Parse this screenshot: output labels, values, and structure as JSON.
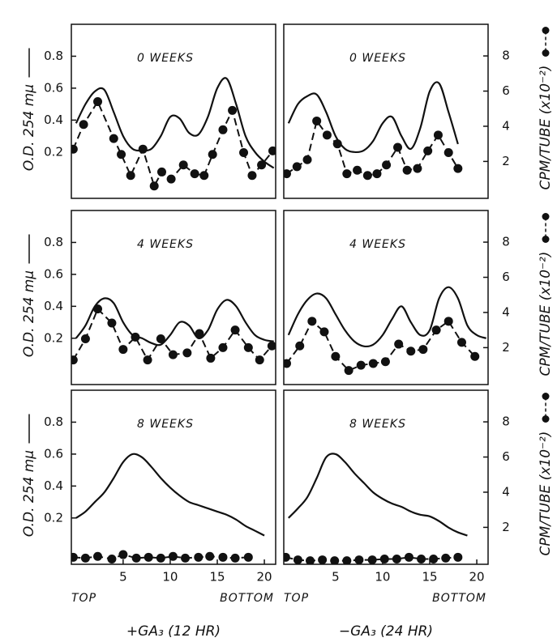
{
  "column_labels": [
    "+GA₃ (12 HR)",
    "−GA₃ (24 HR)"
  ],
  "chart_data": [
    {
      "type": "line",
      "title": "0 WEEKS",
      "ylabel": "O.D. 254 mμ",
      "xlim": [
        -0.5,
        21.2
      ],
      "ylim": [
        -0.09,
        1.0
      ],
      "y2lim": [
        -0.1,
        9.8
      ],
      "yticks": [
        0.2,
        0.4,
        0.6,
        0.8
      ],
      "series": [
        {
          "style": "solid",
          "color": "#111111",
          "x": [
            0,
            1,
            2,
            3,
            4,
            5,
            6,
            7,
            8,
            9,
            10,
            11,
            12,
            13,
            14,
            15,
            16,
            17,
            18,
            19,
            20,
            21
          ],
          "values": [
            0.38,
            0.5,
            0.58,
            0.59,
            0.45,
            0.3,
            0.22,
            0.21,
            0.22,
            0.3,
            0.42,
            0.41,
            0.32,
            0.31,
            0.42,
            0.6,
            0.66,
            0.5,
            0.3,
            0.2,
            0.14,
            0.1
          ]
        },
        {
          "style": "dashed-dots",
          "axis": "y2",
          "color": "#111111",
          "x": [
            -0.3,
            0.8,
            2.3,
            4.0,
            4.8,
            5.8,
            7.1,
            8.3,
            9.1,
            10.1,
            11.4,
            12.6,
            13.6,
            14.5,
            15.6,
            16.6,
            17.8,
            18.7,
            19.7,
            20.9
          ],
          "values": [
            2.7,
            4.1,
            5.4,
            3.3,
            2.4,
            1.2,
            2.7,
            0.6,
            1.4,
            1.0,
            1.8,
            1.3,
            1.2,
            2.4,
            3.8,
            4.9,
            2.5,
            1.2,
            1.8,
            2.6
          ]
        }
      ]
    },
    {
      "type": "line",
      "title": "0 WEEKS",
      "y2label": "CPM/TUBE (x10⁻²)",
      "xlim": [
        -0.5,
        21.2
      ],
      "ylim": [
        -0.09,
        1.0
      ],
      "y2lim": [
        -0.1,
        9.8
      ],
      "y2ticks": [
        2,
        4,
        6,
        8
      ],
      "series": [
        {
          "style": "solid",
          "color": "#111111",
          "x": [
            0,
            1,
            2,
            3,
            4,
            5,
            6,
            7,
            8,
            9,
            10,
            11,
            12,
            13,
            14,
            15,
            16,
            17,
            18
          ],
          "values": [
            0.38,
            0.5,
            0.55,
            0.56,
            0.45,
            0.3,
            0.22,
            0.2,
            0.21,
            0.27,
            0.38,
            0.42,
            0.3,
            0.22,
            0.35,
            0.58,
            0.63,
            0.45,
            0.25
          ]
        },
        {
          "style": "dashed-dots",
          "axis": "y2",
          "color": "#111111",
          "x": [
            -0.2,
            0.9,
            2.0,
            3.0,
            4.1,
            5.2,
            6.2,
            7.3,
            8.4,
            9.4,
            10.4,
            11.6,
            12.6,
            13.7,
            14.8,
            15.9,
            17.0,
            18.0
          ],
          "values": [
            1.3,
            1.7,
            2.1,
            4.3,
            3.5,
            3.0,
            1.3,
            1.5,
            1.2,
            1.3,
            1.8,
            2.8,
            1.5,
            1.6,
            2.6,
            3.5,
            2.5,
            1.6
          ]
        }
      ]
    },
    {
      "type": "line",
      "title": "4 WEEKS",
      "ylabel": "O.D. 254 mμ",
      "xlim": [
        -0.5,
        21.2
      ],
      "ylim": [
        -0.09,
        1.0
      ],
      "y2lim": [
        -0.1,
        9.8
      ],
      "yticks": [
        0.2,
        0.4,
        0.6,
        0.8
      ],
      "series": [
        {
          "style": "solid",
          "color": "#111111",
          "x": [
            0,
            1,
            2,
            3,
            4,
            5,
            6,
            7,
            8,
            9,
            10,
            11,
            12,
            13,
            14,
            15,
            16,
            17,
            18,
            19,
            20,
            21
          ],
          "values": [
            0.2,
            0.28,
            0.4,
            0.45,
            0.42,
            0.3,
            0.22,
            0.2,
            0.17,
            0.16,
            0.22,
            0.3,
            0.28,
            0.2,
            0.25,
            0.38,
            0.44,
            0.4,
            0.3,
            0.22,
            0.19,
            0.18
          ]
        },
        {
          "style": "dashed-dots",
          "axis": "y2",
          "color": "#111111",
          "x": [
            -0.3,
            1.0,
            2.3,
            3.8,
            5.0,
            6.3,
            7.6,
            9.0,
            10.3,
            11.8,
            13.1,
            14.3,
            15.6,
            16.9,
            18.3,
            19.5,
            20.8
          ],
          "values": [
            1.3,
            2.5,
            4.2,
            3.4,
            1.9,
            2.6,
            1.3,
            2.5,
            1.6,
            1.7,
            2.8,
            1.4,
            2.0,
            3.0,
            2.0,
            1.3,
            2.1
          ]
        }
      ]
    },
    {
      "type": "line",
      "title": "4 WEEKS",
      "y2label": "CPM/TUBE (x10⁻²)",
      "xlim": [
        -0.5,
        21.2
      ],
      "ylim": [
        -0.09,
        1.0
      ],
      "y2lim": [
        -0.1,
        9.8
      ],
      "y2ticks": [
        2,
        4,
        6,
        8
      ],
      "series": [
        {
          "style": "solid",
          "color": "#111111",
          "x": [
            0,
            1,
            2,
            3,
            4,
            5,
            6,
            7,
            8,
            9,
            10,
            11,
            12,
            13,
            14,
            15,
            16,
            17,
            18,
            19,
            20,
            21
          ],
          "values": [
            0.22,
            0.35,
            0.44,
            0.48,
            0.45,
            0.35,
            0.25,
            0.18,
            0.15,
            0.16,
            0.22,
            0.32,
            0.4,
            0.3,
            0.22,
            0.25,
            0.45,
            0.52,
            0.45,
            0.28,
            0.22,
            0.2
          ]
        },
        {
          "style": "dashed-dots",
          "axis": "y2",
          "color": "#111111",
          "x": [
            -0.2,
            1.2,
            2.5,
            3.8,
            5.0,
            6.4,
            7.7,
            9.0,
            10.3,
            11.7,
            13.0,
            14.3,
            15.7,
            17.0,
            18.4,
            19.8
          ],
          "values": [
            1.1,
            2.1,
            3.5,
            2.9,
            1.5,
            0.7,
            1.0,
            1.1,
            1.2,
            2.2,
            1.8,
            1.9,
            3.0,
            3.5,
            2.3,
            1.5
          ]
        }
      ]
    },
    {
      "type": "line",
      "title": "8 WEEKS",
      "ylabel": "O.D. 254 mμ",
      "xlim": [
        -0.5,
        21.2
      ],
      "ylim": [
        -0.09,
        1.0
      ],
      "y2lim": [
        -0.1,
        9.8
      ],
      "yticks": [
        0.2,
        0.4,
        0.6,
        0.8
      ],
      "xticks": [
        5,
        10,
        15,
        20
      ],
      "x_start_label": "TOP",
      "x_end_label": "BOTTOM",
      "series": [
        {
          "style": "solid",
          "color": "#111111",
          "x": [
            0,
            1,
            2,
            3,
            4,
            5,
            6,
            7,
            8,
            9,
            10,
            11,
            12,
            13,
            14,
            15,
            16,
            17,
            18,
            19,
            20
          ],
          "values": [
            0.2,
            0.24,
            0.3,
            0.36,
            0.45,
            0.55,
            0.6,
            0.58,
            0.52,
            0.45,
            0.39,
            0.34,
            0.3,
            0.28,
            0.26,
            0.24,
            0.22,
            0.19,
            0.15,
            0.12,
            0.09
          ]
        },
        {
          "style": "dashed-dots",
          "axis": "y2",
          "color": "#111111",
          "x": [
            -0.3,
            1.0,
            2.3,
            3.8,
            5.0,
            6.4,
            7.7,
            9.0,
            10.3,
            11.6,
            13.0,
            14.2,
            15.6,
            16.9,
            18.3
          ],
          "values": [
            0.3,
            0.25,
            0.35,
            0.2,
            0.45,
            0.25,
            0.3,
            0.25,
            0.35,
            0.25,
            0.3,
            0.35,
            0.3,
            0.25,
            0.3
          ]
        }
      ]
    },
    {
      "type": "line",
      "title": "8 WEEKS",
      "y2label": "CPM/TUBE (x10⁻²)",
      "xlim": [
        -0.5,
        21.2
      ],
      "ylim": [
        -0.09,
        1.0
      ],
      "y2lim": [
        -0.1,
        9.8
      ],
      "y2ticks": [
        2,
        4,
        6,
        8
      ],
      "xticks": [
        5,
        10,
        15,
        20
      ],
      "x_start_label": "TOP",
      "x_end_label": "BOTTOM",
      "series": [
        {
          "style": "solid",
          "color": "#111111",
          "x": [
            0,
            1,
            2,
            3,
            4,
            5,
            6,
            7,
            8,
            9,
            10,
            11,
            12,
            13,
            14,
            15,
            16,
            17,
            18,
            19
          ],
          "values": [
            0.2,
            0.26,
            0.33,
            0.45,
            0.58,
            0.6,
            0.55,
            0.48,
            0.42,
            0.36,
            0.32,
            0.29,
            0.27,
            0.24,
            0.22,
            0.21,
            0.18,
            0.14,
            0.11,
            0.09
          ]
        },
        {
          "style": "dashed-dots",
          "axis": "y2",
          "color": "#111111",
          "x": [
            -0.3,
            1.0,
            2.3,
            3.6,
            4.9,
            6.2,
            7.5,
            8.9,
            10.2,
            11.5,
            12.8,
            14.1,
            15.4,
            16.7,
            18.0
          ],
          "values": [
            0.3,
            0.15,
            0.1,
            0.15,
            0.1,
            0.1,
            0.15,
            0.15,
            0.2,
            0.2,
            0.3,
            0.2,
            0.2,
            0.25,
            0.3
          ]
        }
      ]
    }
  ]
}
